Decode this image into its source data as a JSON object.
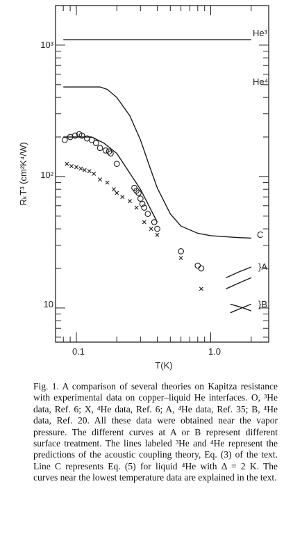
{
  "chart_data": {
    "type": "line",
    "xscale": "log",
    "yscale": "log",
    "xlim": [
      0.07,
      2.7
    ],
    "ylim": [
      5.5,
      2000
    ],
    "xlabel": "T(K)",
    "ylabel": "RₖT³ (cm²K⁴/W)",
    "xticklabels": [
      {
        "value": 0.1,
        "label": "0.1"
      },
      {
        "value": 1.0,
        "label": "1.0"
      }
    ],
    "yticklabels": [
      {
        "value": 10,
        "label": "10"
      },
      {
        "value": 100,
        "label": "10²"
      },
      {
        "value": 1000,
        "label": "10³"
      }
    ],
    "curve_labels": {
      "he3": "He³",
      "he4": "He⁴",
      "c": "C",
      "a": "}A",
      "b": "}B"
    },
    "series": [
      {
        "key": "he3",
        "style": "line",
        "x": [
          0.08,
          2.0
        ],
        "y": [
          1100,
          1100
        ]
      },
      {
        "key": "he4",
        "style": "line",
        "x": [
          0.08,
          0.15,
          0.17,
          0.2,
          0.25,
          0.3,
          0.35,
          0.4,
          0.5,
          0.6,
          0.8,
          1.0,
          1.5,
          2.0
        ],
        "y": [
          480,
          480,
          460,
          400,
          290,
          190,
          120,
          82,
          52,
          42,
          37,
          35.5,
          34.5,
          34
        ]
      },
      {
        "key": "c",
        "style": "line",
        "x": [
          0.08,
          0.13,
          0.16,
          0.2,
          0.3,
          0.4
        ],
        "y": [
          200,
          200,
          180,
          150,
          80,
          45
        ]
      },
      {
        "key": "o",
        "style": "circle",
        "x": [
          0.082,
          0.09,
          0.098,
          0.105,
          0.11,
          0.12,
          0.13,
          0.14,
          0.15,
          0.165,
          0.175,
          0.18,
          0.2,
          0.27,
          0.28,
          0.29,
          0.3,
          0.31,
          0.32,
          0.34,
          0.38,
          0.4,
          0.6,
          0.8,
          0.85
        ],
        "y": [
          190,
          200,
          205,
          210,
          205,
          195,
          190,
          180,
          165,
          158,
          155,
          150,
          125,
          82,
          78,
          75,
          68,
          62,
          58,
          52,
          45,
          40,
          27,
          21,
          20
        ]
      },
      {
        "key": "x",
        "style": "cross",
        "x": [
          0.085,
          0.092,
          0.1,
          0.108,
          0.115,
          0.125,
          0.135,
          0.15,
          0.17,
          0.19,
          0.2,
          0.22,
          0.25,
          0.28,
          0.32,
          0.36,
          0.4,
          0.6,
          0.85
        ],
        "y": [
          125,
          120,
          118,
          115,
          112,
          110,
          105,
          95,
          90,
          80,
          75,
          70,
          65,
          58,
          45,
          40,
          36,
          24,
          14
        ]
      },
      {
        "key": "a1",
        "style": "line",
        "x": [
          1.3,
          1.6,
          2.0
        ],
        "y": [
          17,
          18.7,
          20.5
        ]
      },
      {
        "key": "a2",
        "style": "line",
        "x": [
          1.3,
          1.6,
          2.0
        ],
        "y": [
          14,
          15.4,
          17
        ]
      },
      {
        "key": "b1",
        "style": "line",
        "x": [
          1.4,
          1.7,
          2.0
        ],
        "y": [
          9.2,
          10,
          10.7
        ]
      },
      {
        "key": "b2",
        "style": "line",
        "x": [
          1.4,
          1.7,
          2.0
        ],
        "y": [
          10.7,
          10.1,
          9.5
        ]
      }
    ]
  },
  "caption": "Fig. 1. A comparison of several theories on Kapitza resistance with experimental data on copper–liquid He interfaces. O, ³He data, Ref. 6; X, ⁴He data, Ref. 6; A, ⁴He data, Ref. 35; B, ⁴He data, Ref. 20. All these data were obtained near the vapor pressure. The different curves at A or B represent different surface treatment. The lines labeled ³He and ⁴He represent the predictions of the acoustic coupling theory, Eq. (3) of the text. Line C represents Eq. (5) for liquid ⁴He with Δ = 2 K. The curves near the lowest temperature data are explained in the text."
}
